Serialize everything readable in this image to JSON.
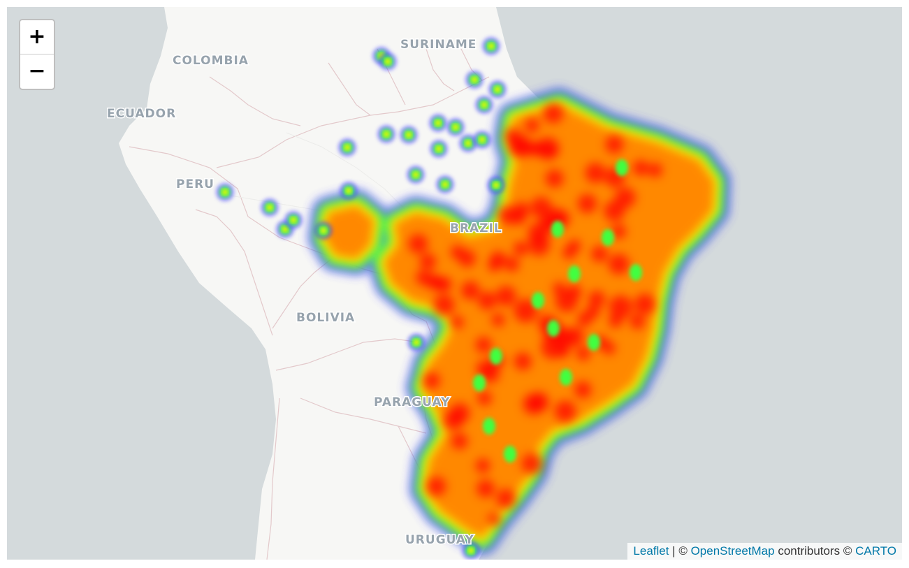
{
  "map": {
    "country_labels": {
      "colombia": "COLOMBIA",
      "suriname": "SURINAME",
      "ecuador": "ECUADOR",
      "peru": "PERU",
      "brazil": "BRAZIL",
      "bolivia": "BOLIVIA",
      "paraguay": "PARAGUAY",
      "uruguay": "URUGUAY"
    },
    "colors": {
      "ocean": "#d4dadc",
      "land": "#f7f7f5",
      "border": "#e3c9cb",
      "label": "#97a3ad",
      "heat_low": "#4040ff",
      "heat_mid": "#40ff40",
      "heat_high": "#ff0000"
    }
  },
  "zoom": {
    "in_label": "+",
    "out_label": "−"
  },
  "attribution": {
    "leaflet": "Leaflet",
    "sep1": " | © ",
    "osm": "OpenStreetMap",
    "contributors": " contributors © ",
    "carto": "CARTO"
  }
}
